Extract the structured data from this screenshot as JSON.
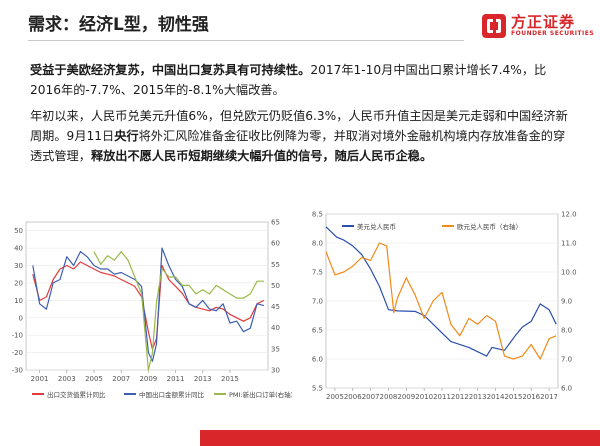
{
  "header": {
    "title": "需求：经济L型，韧性强",
    "logo_cn": "方正证券",
    "logo_en": "FOUNDER SECURITIES"
  },
  "paragraph1": {
    "bold": "受益于美欧经济复苏，中国出口复苏具有可持续性。",
    "text": "2017年1-10月中国出口累计增长7.4%，比2016年的-7.7%、2015年的-8.1%大幅改善。"
  },
  "paragraph2": {
    "t1": "年初以来，人民币兑美元升值6%，但兑欧元仍贬值6.3%，人民币升值主因是美元走弱和中国经济新周期。9月11日",
    "b1": "央行",
    "t2": "将外汇风险准备金征收比例降为零，并取消对境外金融机构境内存放准备金的穿透式管理，",
    "b2": "释放出不愿人民币短期继续大幅升值的信号，随后人民币企稳。"
  },
  "colors": {
    "brand": "#d8262a",
    "export_value": "#e23b3b",
    "export_amount": "#3c5fb4",
    "pmi": "#9ab84a",
    "usd_cny": "#2a4fb0",
    "eur_cny": "#f08a1a"
  },
  "chart_data": [
    {
      "type": "line",
      "x_ticks": [
        "2001",
        "2003",
        "2005",
        "2007",
        "2009",
        "2011",
        "2013",
        "2015"
      ],
      "xlim": [
        2000,
        2017.8
      ],
      "y_left_ticks": [
        "50",
        "40",
        "30",
        "20",
        "10",
        "0",
        "-10",
        "-20",
        "-30"
      ],
      "ylim_left": [
        -30,
        55
      ],
      "y_right_ticks": [
        "65",
        "60",
        "55",
        "50",
        "45",
        "40",
        "35",
        "30"
      ],
      "ylim_right": [
        30,
        65
      ],
      "legend": [
        "出口交货值累计同比",
        "中国出口金额累计同比",
        "PMI:新出口订单(右轴)"
      ],
      "legend_position": "bottom",
      "series": [
        {
          "name": "出口交货值累计同比",
          "axis": "left",
          "x": [
            2000.5,
            2001,
            2001.5,
            2002,
            2002.5,
            2003,
            2003.5,
            2004,
            2004.5,
            2005,
            2005.5,
            2006,
            2006.5,
            2007,
            2007.5,
            2008,
            2008.5,
            2009,
            2009.3,
            2009.6,
            2010,
            2010.5,
            2011,
            2011.5,
            2012,
            2012.5,
            2013,
            2013.5,
            2014,
            2014.5,
            2015,
            2015.5,
            2016,
            2016.5,
            2017,
            2017.5
          ],
          "y": [
            25,
            10,
            12,
            22,
            28,
            30,
            28,
            32,
            30,
            28,
            26,
            25,
            24,
            22,
            20,
            18,
            12,
            -8,
            -18,
            -12,
            30,
            22,
            18,
            14,
            8,
            6,
            5,
            4,
            6,
            5,
            2,
            0,
            -2,
            0,
            8,
            10
          ]
        },
        {
          "name": "中国出口金额累计同比",
          "axis": "left",
          "x": [
            2000.5,
            2001,
            2001.5,
            2002,
            2002.5,
            2003,
            2003.5,
            2004,
            2004.5,
            2005,
            2005.5,
            2006,
            2006.5,
            2007,
            2007.5,
            2008,
            2008.5,
            2009,
            2009.3,
            2009.6,
            2010,
            2010.5,
            2011,
            2011.5,
            2012,
            2012.5,
            2013,
            2013.5,
            2014,
            2014.5,
            2015,
            2015.5,
            2016,
            2016.5,
            2017,
            2017.5
          ],
          "y": [
            30,
            8,
            5,
            20,
            22,
            35,
            30,
            38,
            35,
            30,
            28,
            28,
            25,
            26,
            24,
            22,
            18,
            -20,
            -25,
            -15,
            40,
            30,
            22,
            18,
            8,
            6,
            10,
            5,
            4,
            8,
            -3,
            -2,
            -8,
            -6,
            8,
            7
          ]
        },
        {
          "name": "PMI:新出口订单(右轴)",
          "axis": "right",
          "x": [
            2005,
            2005.5,
            2006,
            2006.5,
            2007,
            2007.5,
            2008,
            2008.5,
            2009,
            2009.3,
            2009.6,
            2010,
            2010.5,
            2011,
            2011.5,
            2012,
            2012.5,
            2013,
            2013.5,
            2014,
            2014.5,
            2015,
            2015.5,
            2016,
            2016.5,
            2017,
            2017.5
          ],
          "y": [
            58,
            55,
            57,
            56,
            58,
            56,
            52,
            48,
            30,
            34,
            46,
            54,
            52,
            52,
            50,
            50,
            48,
            49,
            48,
            50,
            49,
            48,
            47,
            47,
            48,
            51,
            51
          ]
        }
      ]
    },
    {
      "type": "line",
      "x_ticks": [
        "2005",
        "2006",
        "2007",
        "2008",
        "2009",
        "2010",
        "2011",
        "2012",
        "2013",
        "2014",
        "2015",
        "2016",
        "2017"
      ],
      "xlim": [
        2005,
        2018
      ],
      "y_left_ticks": [
        "8.5",
        "8.0",
        "7.5",
        "7.0",
        "6.5",
        "6.0",
        "5.5"
      ],
      "ylim_left": [
        5.5,
        8.5
      ],
      "y_right_ticks": [
        "12.0",
        "11.0",
        "10.0",
        "9.0",
        "8.0",
        "7.0",
        "6.0"
      ],
      "ylim_right": [
        6.0,
        12.0
      ],
      "legend": [
        "美元兑人民币",
        "欧元兑人民币（右轴）"
      ],
      "legend_position": "top",
      "series": [
        {
          "name": "美元兑人民币",
          "axis": "left",
          "x": [
            2005,
            2005.6,
            2006,
            2006.5,
            2007,
            2007.5,
            2008,
            2008.5,
            2009,
            2010,
            2010.5,
            2011,
            2011.5,
            2012,
            2013,
            2014,
            2014.3,
            2015,
            2015.6,
            2016,
            2016.5,
            2017,
            2017.5,
            2017.9
          ],
          "y": [
            8.28,
            8.1,
            8.05,
            7.95,
            7.8,
            7.55,
            7.25,
            6.85,
            6.83,
            6.82,
            6.75,
            6.6,
            6.45,
            6.3,
            6.2,
            6.05,
            6.2,
            6.15,
            6.4,
            6.55,
            6.65,
            6.95,
            6.85,
            6.6
          ]
        },
        {
          "name": "欧元兑人民币（右轴）",
          "axis": "right",
          "x": [
            2005,
            2005.5,
            2006,
            2006.5,
            2007,
            2007.5,
            2008,
            2008.4,
            2008.8,
            2009,
            2009.5,
            2010,
            2010.5,
            2011,
            2011.5,
            2012,
            2012.5,
            2013,
            2013.5,
            2014,
            2014.5,
            2015,
            2015.5,
            2016,
            2016.5,
            2017,
            2017.5,
            2017.9
          ],
          "y": [
            10.7,
            9.9,
            10.0,
            10.2,
            10.5,
            10.4,
            11.0,
            10.9,
            8.6,
            9.1,
            9.8,
            9.2,
            8.4,
            9.0,
            9.3,
            8.2,
            7.8,
            8.4,
            8.2,
            8.5,
            8.3,
            7.1,
            7.0,
            7.1,
            7.5,
            7.0,
            7.7,
            7.8
          ]
        }
      ]
    }
  ]
}
